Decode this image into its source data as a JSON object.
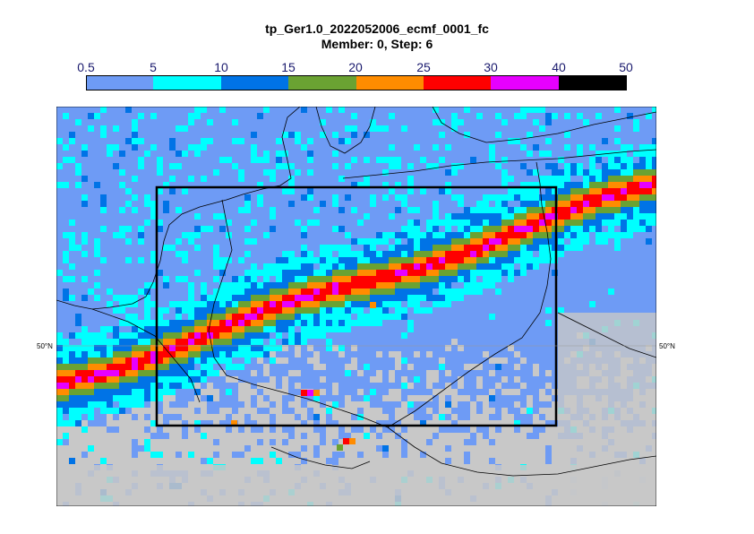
{
  "title": "tp_Ger1.0_2022052006_ecmf_0001_fc",
  "subtitle": "Member: 0, Step: 6",
  "colorbar": {
    "labels": [
      "0.5",
      "5",
      "10",
      "15",
      "20",
      "25",
      "30",
      "40",
      "50"
    ],
    "colors": [
      "#6e9bf5",
      "#00ffff",
      "#0073e6",
      "#6aa232",
      "#ff8c00",
      "#ff0000",
      "#e600ff",
      "#000000"
    ]
  },
  "map": {
    "latitude_label_left": "50°N",
    "latitude_label_right": "50°N",
    "colors": {
      "land_nodata": "#c8c8c8",
      "precip_low": "#6e9bf5",
      "precip_5": "#00ffff",
      "precip_10": "#0073e6",
      "precip_15": "#6aa232",
      "precip_20": "#ff8c00",
      "precip_25": "#ff0000",
      "precip_30": "#e600ff",
      "boundary": "#000000"
    }
  }
}
